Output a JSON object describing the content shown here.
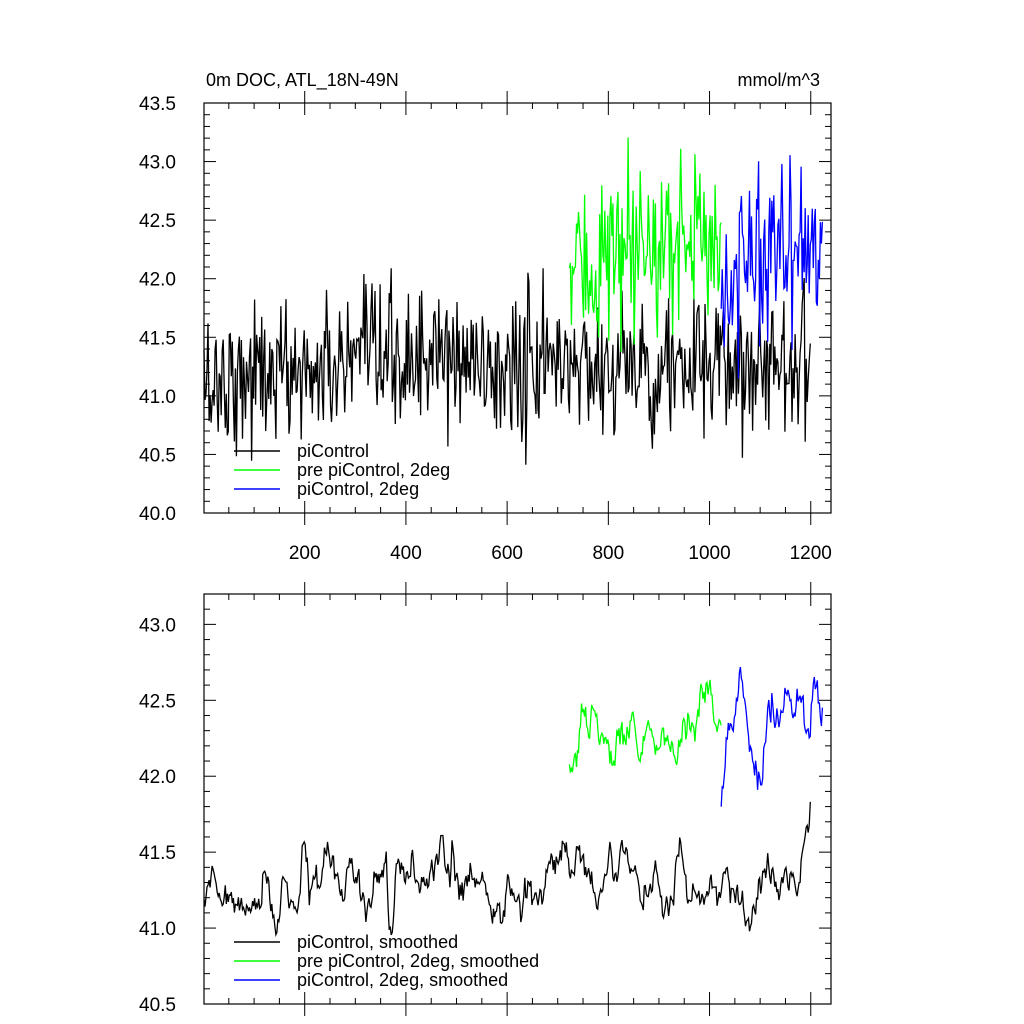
{
  "chart_data": [
    {
      "type": "line",
      "title": "0m DOC, ATL_18N-49N",
      "units": "mmol/m^3",
      "xlim": [
        1,
        1240
      ],
      "ylim": [
        40.0,
        43.5
      ],
      "xticks": [
        200,
        400,
        600,
        800,
        1000,
        1200
      ],
      "yticks": [
        40.0,
        40.5,
        41.0,
        41.5,
        42.0,
        42.5,
        43.0,
        43.5
      ],
      "ytick_labels": [
        "40.0",
        "40.5",
        "41.0",
        "41.5",
        "42.0",
        "42.5",
        "43.0",
        "43.5"
      ],
      "legend_position": "bottom-left",
      "series": [
        {
          "name": "piControl",
          "color": "#000000",
          "x_range": [
            1,
            1200
          ],
          "mean": 41.25,
          "spread": 0.3,
          "values_approx": [
            {
              "x": 1,
              "y": 41.1
            },
            {
              "x": 100,
              "y": 41.2
            },
            {
              "x": 200,
              "y": 41.2
            },
            {
              "x": 300,
              "y": 41.25
            },
            {
              "x": 400,
              "y": 41.3
            },
            {
              "x": 500,
              "y": 41.3
            },
            {
              "x": 600,
              "y": 41.2
            },
            {
              "x": 700,
              "y": 41.3
            },
            {
              "x": 800,
              "y": 41.25
            },
            {
              "x": 900,
              "y": 41.25
            },
            {
              "x": 1000,
              "y": 41.2
            },
            {
              "x": 1100,
              "y": 41.3
            },
            {
              "x": 1200,
              "y": 41.3
            }
          ]
        },
        {
          "name": "pre piControl, 2deg",
          "color": "#00ff00",
          "x_range": [
            723,
            1023
          ],
          "mean": 42.25,
          "spread": 0.35,
          "values_approx": [
            {
              "x": 723,
              "y": 42.0
            },
            {
              "x": 800,
              "y": 42.2
            },
            {
              "x": 850,
              "y": 42.1
            },
            {
              "x": 900,
              "y": 42.3
            },
            {
              "x": 950,
              "y": 42.35
            },
            {
              "x": 1000,
              "y": 42.4
            },
            {
              "x": 1023,
              "y": 42.2
            }
          ]
        },
        {
          "name": "piControl, 2deg",
          "color": "#0000ff",
          "x_range": [
            1023,
            1223
          ],
          "mean": 42.3,
          "spread": 0.35,
          "values_approx": [
            {
              "x": 1023,
              "y": 42.0
            },
            {
              "x": 1075,
              "y": 42.3
            },
            {
              "x": 1125,
              "y": 42.3
            },
            {
              "x": 1175,
              "y": 42.3
            },
            {
              "x": 1223,
              "y": 42.3
            }
          ]
        }
      ]
    },
    {
      "type": "line",
      "title": "",
      "xlim": [
        1,
        1240
      ],
      "ylim": [
        40.5,
        43.2
      ],
      "yticks": [
        40.5,
        41.0,
        41.5,
        42.0,
        42.5,
        43.0
      ],
      "ytick_labels": [
        "40.5",
        "41.0",
        "41.5",
        "42.0",
        "42.5",
        "43.0"
      ],
      "legend_position": "bottom-left",
      "series": [
        {
          "name": "piControl, smoothed",
          "color": "#000000",
          "x_range": [
            1,
            1200
          ],
          "mean": 41.25,
          "spread": 0.18,
          "values_approx": [
            {
              "x": 1,
              "y": 41.2
            },
            {
              "x": 100,
              "y": 41.1
            },
            {
              "x": 200,
              "y": 41.3
            },
            {
              "x": 300,
              "y": 41.2
            },
            {
              "x": 400,
              "y": 41.3
            },
            {
              "x": 500,
              "y": 41.35
            },
            {
              "x": 600,
              "y": 41.1
            },
            {
              "x": 700,
              "y": 41.4
            },
            {
              "x": 800,
              "y": 41.3
            },
            {
              "x": 900,
              "y": 41.2
            },
            {
              "x": 1000,
              "y": 41.3
            },
            {
              "x": 1100,
              "y": 41.2
            },
            {
              "x": 1200,
              "y": 41.5
            }
          ]
        },
        {
          "name": "pre piControl, 2deg, smoothed",
          "color": "#00ff00",
          "x_range": [
            723,
            1023
          ],
          "mean": 42.2,
          "spread": 0.18,
          "values_approx": [
            {
              "x": 723,
              "y": 42.0
            },
            {
              "x": 750,
              "y": 42.4
            },
            {
              "x": 800,
              "y": 42.2
            },
            {
              "x": 850,
              "y": 42.1
            },
            {
              "x": 900,
              "y": 42.2
            },
            {
              "x": 950,
              "y": 42.3
            },
            {
              "x": 1000,
              "y": 42.6
            },
            {
              "x": 1023,
              "y": 42.2
            }
          ]
        },
        {
          "name": "piControl, 2deg, smoothed",
          "color": "#0000ff",
          "x_range": [
            1023,
            1223
          ],
          "mean": 42.3,
          "spread": 0.2,
          "values_approx": [
            {
              "x": 1023,
              "y": 41.9
            },
            {
              "x": 1050,
              "y": 42.6
            },
            {
              "x": 1100,
              "y": 42.1
            },
            {
              "x": 1150,
              "y": 42.5
            },
            {
              "x": 1200,
              "y": 42.5
            },
            {
              "x": 1223,
              "y": 42.3
            }
          ]
        }
      ]
    }
  ]
}
